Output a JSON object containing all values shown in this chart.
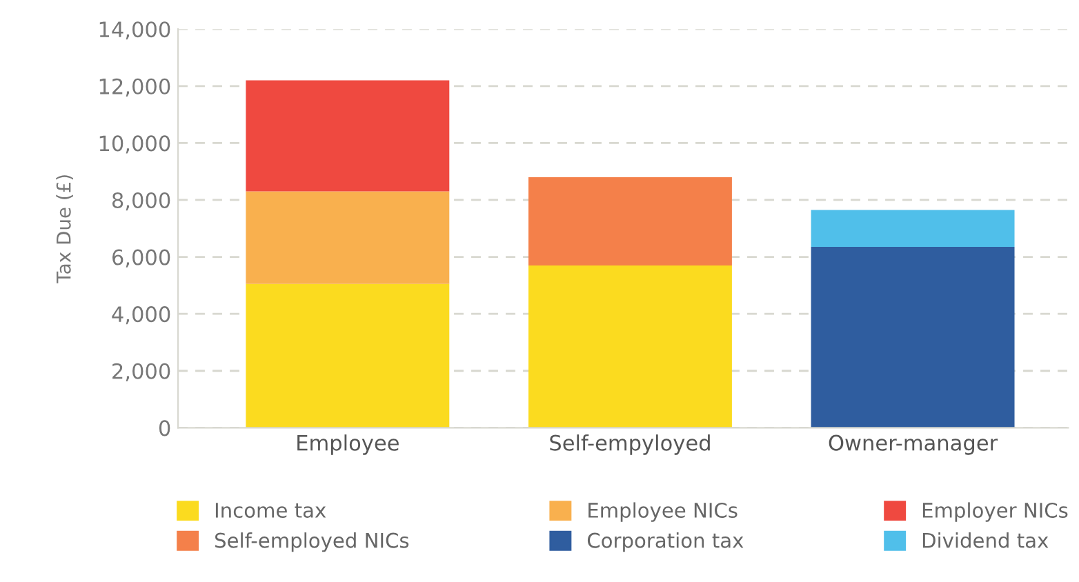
{
  "chart_data": {
    "type": "bar",
    "stacked": true,
    "ylabel": "Tax Due (£)",
    "categories": [
      "Employee",
      "Self-empyloyed",
      "Owner-manager"
    ],
    "series": [
      {
        "name": "Income tax",
        "color": "#fbdb1f",
        "values": [
          5050,
          5700,
          null
        ]
      },
      {
        "name": "Employee NICs",
        "color": "#f9b04e",
        "values": [
          3250,
          null,
          null
        ]
      },
      {
        "name": "Employer NICs",
        "color": "#ef4940",
        "values": [
          3900,
          null,
          null
        ]
      },
      {
        "name": "Self-employed NICs",
        "color": "#f4804a",
        "values": [
          null,
          3100,
          null
        ]
      },
      {
        "name": "Corporation tax",
        "color": "#2f5d9f",
        "values": [
          null,
          null,
          6350
        ]
      },
      {
        "name": "Dividend tax",
        "color": "#50bfea",
        "values": [
          null,
          null,
          1300
        ]
      }
    ],
    "ylim": [
      0,
      14000
    ],
    "yticks": [
      {
        "value": 0,
        "label": "0"
      },
      {
        "value": 2000,
        "label": "2,000"
      },
      {
        "value": 4000,
        "label": "4,000"
      },
      {
        "value": 6000,
        "label": "6,000"
      },
      {
        "value": 8000,
        "label": "8,000"
      },
      {
        "value": 10000,
        "label": "10,000"
      },
      {
        "value": 12000,
        "label": "12,000"
      },
      {
        "value": 14000,
        "label": "14,000"
      }
    ],
    "grid": "y",
    "legend": "bottom"
  }
}
